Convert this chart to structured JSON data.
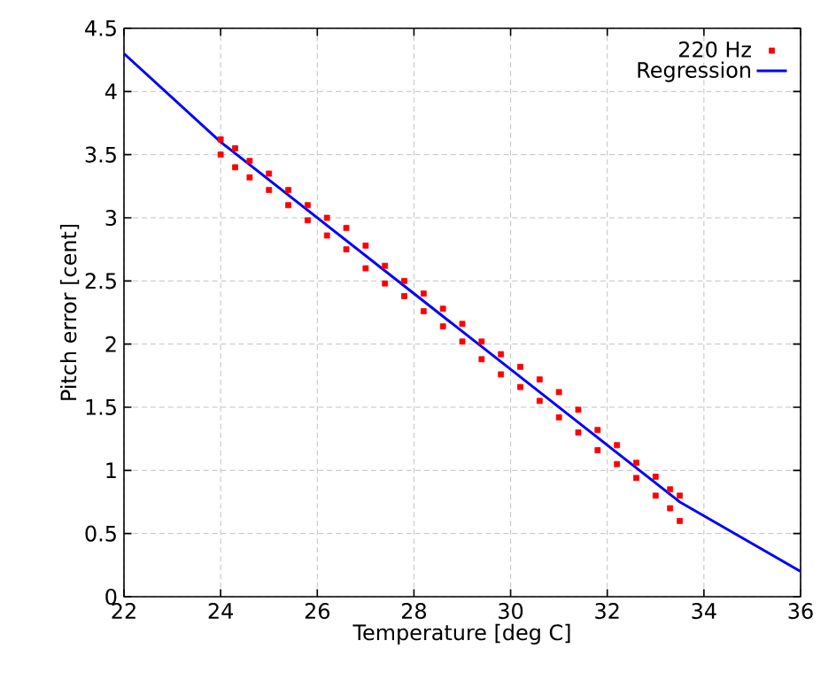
{
  "chart_data": {
    "type": "scatter",
    "xlabel": "Temperature [deg C]",
    "ylabel": "Pitch error [cent]",
    "xlim": [
      22,
      36
    ],
    "ylim": [
      0,
      4.5
    ],
    "xticks": [
      22,
      24,
      26,
      28,
      30,
      32,
      34,
      36
    ],
    "yticks": [
      0,
      0.5,
      1,
      1.5,
      2,
      2.5,
      3,
      3.5,
      4,
      4.5
    ],
    "grid": true,
    "legend": "top right",
    "marker": "square",
    "series": [
      {
        "name": "220 Hz",
        "color": "#ff0000",
        "x": [
          24.0,
          24.0,
          24.3,
          24.3,
          24.6,
          24.6,
          25.0,
          25.0,
          25.4,
          25.4,
          25.8,
          25.8,
          26.2,
          26.2,
          26.6,
          26.6,
          27.0,
          27.0,
          27.4,
          27.4,
          27.8,
          27.8,
          28.2,
          28.2,
          28.6,
          28.6,
          29.0,
          29.0,
          29.4,
          29.4,
          29.8,
          29.8,
          30.2,
          30.2,
          30.6,
          30.6,
          31.0,
          31.0,
          31.4,
          31.4,
          31.8,
          31.8,
          32.2,
          32.2,
          32.6,
          32.6,
          33.0,
          33.0,
          33.3,
          33.3,
          33.5,
          33.5
        ],
        "values": [
          3.62,
          3.5,
          3.55,
          3.4,
          3.45,
          3.32,
          3.35,
          3.22,
          3.22,
          3.1,
          3.1,
          2.98,
          3.0,
          2.86,
          2.92,
          2.75,
          2.78,
          2.6,
          2.62,
          2.48,
          2.5,
          2.38,
          2.4,
          2.26,
          2.28,
          2.14,
          2.16,
          2.02,
          2.02,
          1.88,
          1.92,
          1.76,
          1.82,
          1.66,
          1.72,
          1.55,
          1.62,
          1.42,
          1.48,
          1.3,
          1.32,
          1.16,
          1.2,
          1.05,
          1.06,
          0.94,
          0.95,
          0.8,
          0.85,
          0.7,
          0.8,
          0.6
        ]
      },
      {
        "name": "Regression",
        "color": "#0000ff",
        "type": "line",
        "marker": "none",
        "x": [
          22,
          24,
          30,
          33.5,
          36
        ],
        "values": [
          4.3,
          3.6,
          1.8,
          0.75,
          0.2
        ]
      }
    ]
  }
}
